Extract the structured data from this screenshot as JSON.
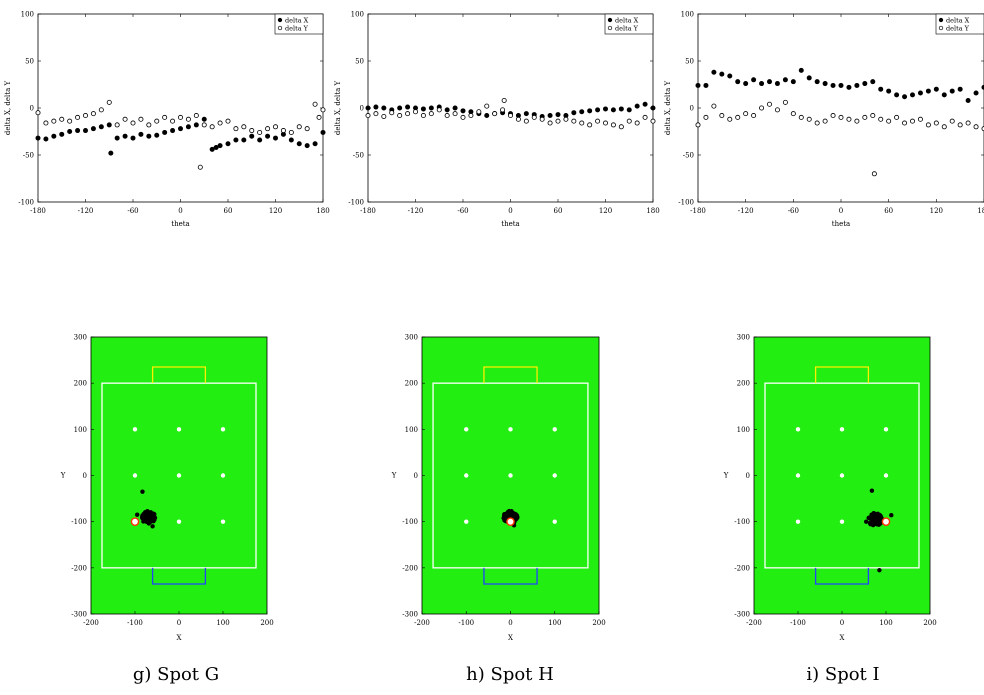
{
  "chart_data": [
    {
      "type": "scatter",
      "panel": "delta-1",
      "xlabel": "theta",
      "ylabel": "delta X, delta Y",
      "xlim": [
        -180,
        180
      ],
      "ylim": [
        -100,
        100
      ],
      "xticks": [
        -180,
        -120,
        -60,
        0,
        60,
        120,
        180
      ],
      "yticks": [
        -100,
        -50,
        0,
        50,
        100
      ],
      "legend": "top-right",
      "series": [
        {
          "name": "delta X",
          "marker": "filled",
          "x": [
            -180,
            -170,
            -160,
            -150,
            -140,
            -130,
            -120,
            -110,
            -100,
            -90,
            -88,
            -80,
            -70,
            -60,
            -50,
            -40,
            -30,
            -20,
            -10,
            0,
            10,
            20,
            30,
            40,
            45,
            50,
            60,
            70,
            80,
            90,
            100,
            110,
            120,
            130,
            140,
            150,
            160,
            170,
            180
          ],
          "y": [
            -32,
            -33,
            -30,
            -28,
            -25,
            -24,
            -24,
            -22,
            -20,
            -18,
            -48,
            -32,
            -30,
            -32,
            -28,
            -30,
            -29,
            -26,
            -24,
            -22,
            -20,
            -18,
            -12,
            -44,
            -42,
            -40,
            -38,
            -34,
            -34,
            -30,
            -34,
            -30,
            -32,
            -28,
            -34,
            -38,
            -40,
            -38,
            -26
          ]
        },
        {
          "name": "delta Y",
          "marker": "open",
          "x": [
            -180,
            -170,
            -160,
            -150,
            -140,
            -130,
            -120,
            -110,
            -100,
            -90,
            -80,
            -70,
            -60,
            -50,
            -40,
            -30,
            -20,
            -10,
            0,
            10,
            20,
            25,
            30,
            40,
            50,
            60,
            70,
            80,
            90,
            100,
            110,
            120,
            130,
            140,
            150,
            160,
            170,
            175,
            180
          ],
          "y": [
            -5,
            -16,
            -14,
            -12,
            -14,
            -10,
            -8,
            -6,
            -2,
            6,
            -18,
            -12,
            -16,
            -12,
            -18,
            -14,
            -10,
            -14,
            -10,
            -12,
            -8,
            -63,
            -18,
            -20,
            -16,
            -14,
            -22,
            -20,
            -24,
            -26,
            -22,
            -20,
            -24,
            -26,
            -20,
            -22,
            4,
            -10,
            -2
          ]
        }
      ]
    },
    {
      "type": "scatter",
      "panel": "delta-2",
      "xlabel": "theta",
      "ylabel": "delta X, delta Y",
      "xlim": [
        -180,
        180
      ],
      "ylim": [
        -100,
        100
      ],
      "xticks": [
        -180,
        -120,
        -60,
        0,
        60,
        120,
        180
      ],
      "yticks": [
        -100,
        -50,
        0,
        50,
        100
      ],
      "legend": "top-right",
      "series": [
        {
          "name": "delta X",
          "marker": "filled",
          "x": [
            -180,
            -170,
            -160,
            -150,
            -140,
            -130,
            -120,
            -110,
            -100,
            -90,
            -80,
            -70,
            -60,
            -50,
            -40,
            -30,
            -20,
            -10,
            0,
            10,
            20,
            30,
            40,
            50,
            60,
            70,
            80,
            90,
            100,
            110,
            120,
            130,
            140,
            150,
            160,
            170,
            180
          ],
          "y": [
            0,
            1,
            0,
            -2,
            0,
            1,
            0,
            -1,
            0,
            1,
            -2,
            0,
            -3,
            -4,
            -6,
            -8,
            -6,
            -5,
            -6,
            -8,
            -6,
            -7,
            -9,
            -8,
            -7,
            -8,
            -5,
            -4,
            -3,
            -2,
            -1,
            -2,
            -1,
            -2,
            2,
            4,
            0
          ]
        },
        {
          "name": "delta Y",
          "marker": "open",
          "x": [
            -180,
            -170,
            -160,
            -150,
            -140,
            -130,
            -120,
            -110,
            -100,
            -90,
            -80,
            -70,
            -60,
            -50,
            -40,
            -30,
            -20,
            -10,
            -8,
            0,
            10,
            20,
            30,
            40,
            50,
            60,
            70,
            80,
            90,
            100,
            110,
            120,
            130,
            140,
            150,
            160,
            170,
            180
          ],
          "y": [
            -8,
            -6,
            -9,
            -5,
            -8,
            -6,
            -4,
            -8,
            -6,
            -2,
            -8,
            -6,
            -10,
            -8,
            -4,
            2,
            -6,
            -2,
            8,
            -8,
            -12,
            -14,
            -10,
            -12,
            -16,
            -14,
            -12,
            -14,
            -16,
            -18,
            -14,
            -16,
            -18,
            -20,
            -14,
            -16,
            -10,
            -14
          ]
        }
      ]
    },
    {
      "type": "scatter",
      "panel": "delta-3",
      "xlabel": "theta",
      "ylabel": "delta X, delta Y",
      "xlim": [
        -180,
        180
      ],
      "ylim": [
        -100,
        100
      ],
      "xticks": [
        -180,
        -120,
        -60,
        0,
        60,
        120,
        180
      ],
      "yticks": [
        -100,
        -50,
        0,
        50,
        100
      ],
      "legend": "top-right",
      "series": [
        {
          "name": "delta X",
          "marker": "filled",
          "x": [
            -180,
            -170,
            -160,
            -150,
            -140,
            -130,
            -120,
            -110,
            -100,
            -90,
            -80,
            -70,
            -60,
            -50,
            -40,
            -30,
            -20,
            -10,
            0,
            10,
            20,
            30,
            40,
            50,
            60,
            70,
            80,
            90,
            100,
            110,
            120,
            130,
            140,
            150,
            160,
            170,
            180
          ],
          "y": [
            24,
            24,
            38,
            36,
            34,
            28,
            26,
            30,
            26,
            28,
            26,
            30,
            28,
            40,
            32,
            28,
            26,
            24,
            24,
            22,
            24,
            26,
            28,
            20,
            18,
            14,
            12,
            14,
            16,
            18,
            20,
            14,
            18,
            20,
            8,
            16,
            22
          ]
        },
        {
          "name": "delta Y",
          "marker": "open",
          "x": [
            -180,
            -170,
            -160,
            -150,
            -140,
            -130,
            -120,
            -110,
            -100,
            -90,
            -80,
            -70,
            -60,
            -50,
            -40,
            -30,
            -20,
            -10,
            0,
            10,
            20,
            30,
            40,
            42,
            50,
            60,
            70,
            80,
            90,
            100,
            110,
            120,
            130,
            140,
            150,
            160,
            170,
            180
          ],
          "y": [
            -18,
            -10,
            2,
            -8,
            -12,
            -10,
            -6,
            -8,
            0,
            4,
            -2,
            6,
            -6,
            -10,
            -12,
            -16,
            -14,
            -8,
            -10,
            -12,
            -14,
            -10,
            -8,
            -70,
            -12,
            -14,
            -10,
            -16,
            -14,
            -12,
            -18,
            -16,
            -20,
            -14,
            -18,
            -16,
            -20,
            -22
          ]
        }
      ]
    },
    {
      "type": "scatter",
      "panel": "field-g",
      "xlabel": "X",
      "ylabel": "Y",
      "xlim": [
        -200,
        200
      ],
      "ylim": [
        -300,
        300
      ],
      "xticks": [
        -200,
        -100,
        0,
        100,
        200
      ],
      "yticks": [
        -300,
        -200,
        -100,
        0,
        100,
        200,
        300
      ],
      "caption": "g) Spot G",
      "spot": [
        -100,
        -100
      ],
      "cluster_center": [
        -70,
        -90
      ],
      "outliers": [
        [
          -83,
          -35
        ],
        [
          -95,
          -85
        ],
        [
          -60,
          -110
        ]
      ]
    },
    {
      "type": "scatter",
      "panel": "field-h",
      "xlabel": "X",
      "ylabel": "Y",
      "xlim": [
        -200,
        200
      ],
      "ylim": [
        -300,
        300
      ],
      "xticks": [
        -200,
        -100,
        0,
        100,
        200
      ],
      "yticks": [
        -300,
        -200,
        -100,
        0,
        100,
        200,
        300
      ],
      "caption": "h) Spot H",
      "spot": [
        0,
        -100
      ],
      "cluster_center": [
        0,
        -90
      ],
      "outliers": [
        [
          8,
          -108
        ],
        [
          -6,
          -80
        ]
      ]
    },
    {
      "type": "scatter",
      "panel": "field-i",
      "xlabel": "X",
      "ylabel": "Y",
      "xlim": [
        -200,
        200
      ],
      "ylim": [
        -300,
        300
      ],
      "xticks": [
        -200,
        -100,
        0,
        100,
        200
      ],
      "yticks": [
        -300,
        -200,
        -100,
        0,
        100,
        200,
        300
      ],
      "caption": "i) Spot I",
      "spot": [
        100,
        -100
      ],
      "cluster_center": [
        75,
        -95
      ],
      "outliers": [
        [
          68,
          -33
        ],
        [
          85,
          -205
        ],
        [
          112,
          -86
        ],
        [
          55,
          -100
        ]
      ]
    }
  ],
  "field": {
    "grid_points": [
      [
        -100,
        100
      ],
      [
        0,
        100
      ],
      [
        100,
        100
      ],
      [
        -100,
        0
      ],
      [
        0,
        0
      ],
      [
        100,
        0
      ],
      [
        -100,
        -100
      ],
      [
        0,
        -100
      ],
      [
        100,
        -100
      ]
    ],
    "colors": {
      "field": "#22ee11",
      "lines": "#ffffff",
      "goal_top": "#ffee00",
      "goal_bottom": "#2244ff",
      "spot": "#ff3300"
    }
  }
}
